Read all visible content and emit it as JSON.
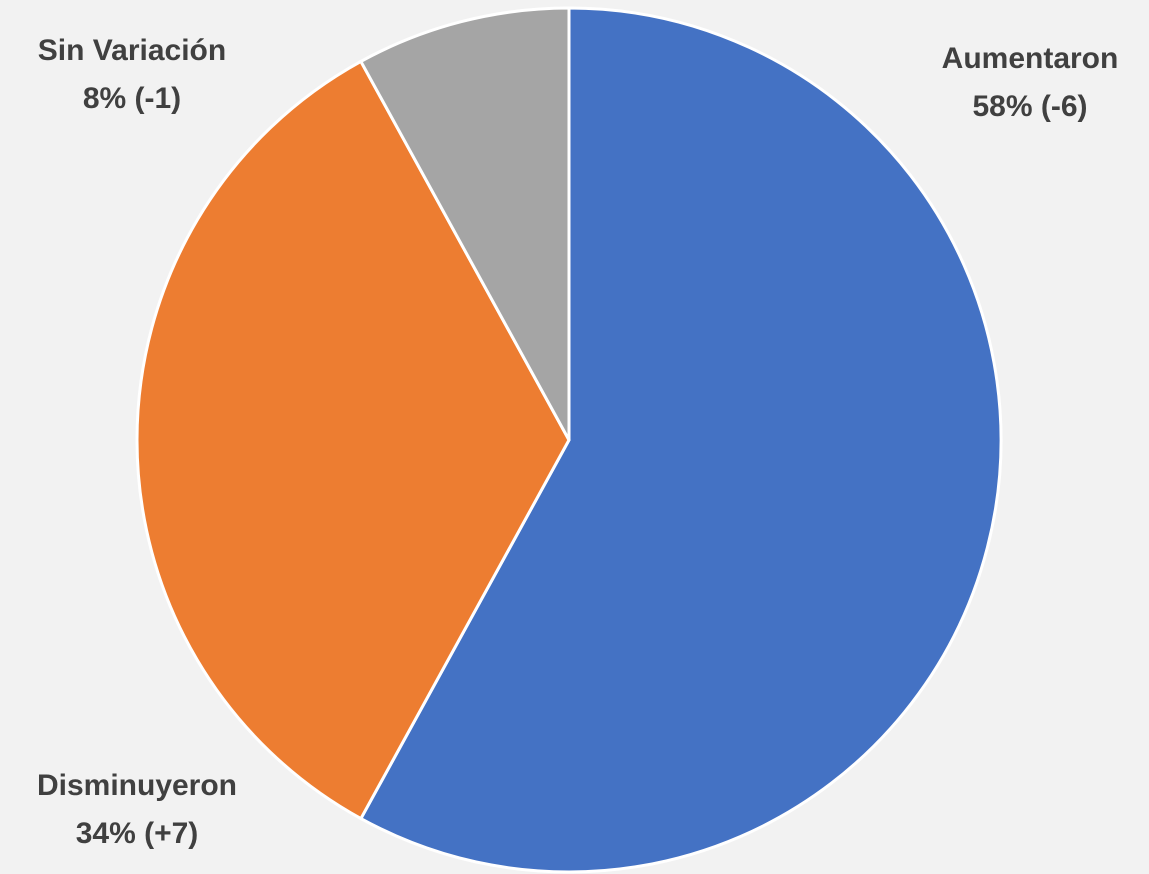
{
  "chart_data": {
    "type": "pie",
    "categories": [
      "Aumentaron",
      "Disminuyeron",
      "Sin Variación"
    ],
    "values": [
      58,
      34,
      8
    ],
    "value_labels": [
      "58% (-6)",
      "34% (+7)",
      "8% (-1)"
    ],
    "colors": [
      "#4472c4",
      "#ed7d31",
      "#a5a5a5"
    ]
  }
}
